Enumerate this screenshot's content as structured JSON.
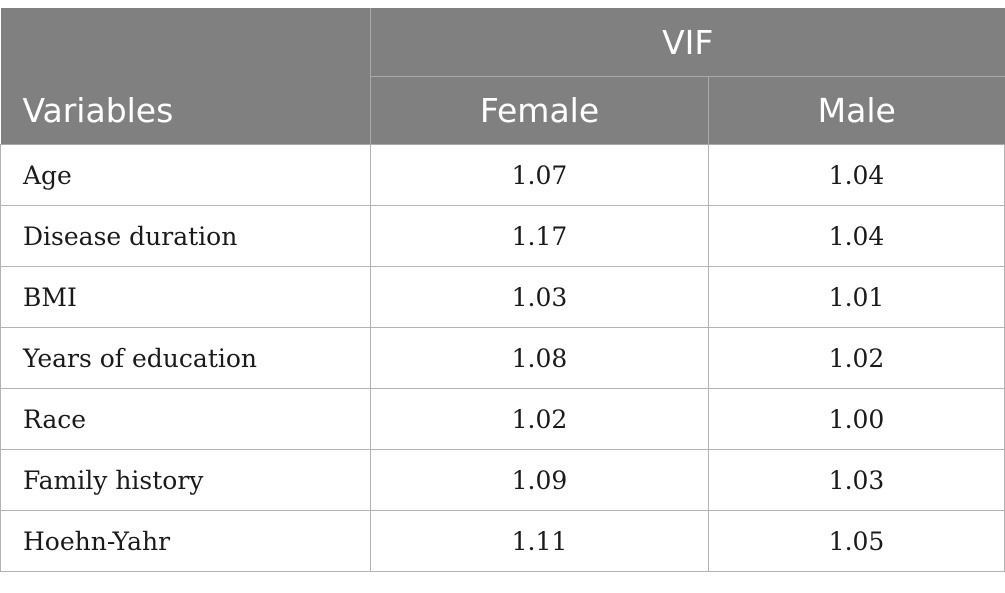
{
  "table": {
    "group_header": "VIF",
    "columns": {
      "variables": "Variables",
      "female": "Female",
      "male": "Male"
    },
    "rows": [
      {
        "variable": "Age",
        "female": "1.07",
        "male": "1.04"
      },
      {
        "variable": "Disease duration",
        "female": "1.17",
        "male": "1.04"
      },
      {
        "variable": "BMI",
        "female": "1.03",
        "male": "1.01"
      },
      {
        "variable": "Years of education",
        "female": "1.08",
        "male": "1.02"
      },
      {
        "variable": "Race",
        "female": "1.02",
        "male": "1.00"
      },
      {
        "variable": "Family history",
        "female": "1.09",
        "male": "1.03"
      },
      {
        "variable": "Hoehn-Yahr",
        "female": "1.11",
        "male": "1.05"
      }
    ],
    "colors": {
      "header_bg": "#808080",
      "header_text": "#ffffff",
      "grid": "#b3b3b3"
    }
  }
}
